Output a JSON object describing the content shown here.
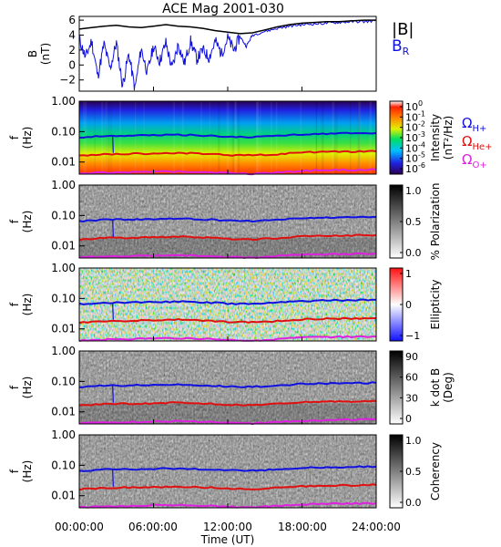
{
  "title": "ACE Mag 2001-030",
  "xlabel": "Time (UT)",
  "x_ticks": [
    "00:00:00",
    "06:00:00",
    "12:00:00",
    "18:00:00",
    "24:00:00"
  ],
  "legend_top": {
    "b_mag": "|B|",
    "b_r": "B",
    "b_r_sub": "R"
  },
  "legend_gyro": [
    {
      "sym": "Ω",
      "sub": "H+",
      "color": "#1010e0"
    },
    {
      "sym": "Ω",
      "sub": "He+",
      "color": "#e01010"
    },
    {
      "sym": "Ω",
      "sub": "O+",
      "color": "#e020e0"
    }
  ],
  "freq_ticks": [
    "1.00",
    "0.10",
    "0.01"
  ],
  "panel_ylabel": "f",
  "panel_yunit": "(Hz)",
  "colors": {
    "b_mag": "#000000",
    "b_r": "#1010e0",
    "h_plus": "#1010e0",
    "he_plus": "#e01010",
    "o_plus": "#e020e0"
  },
  "chart_data": [
    {
      "type": "line",
      "name": "magnetic-field",
      "ylabel": "B",
      "yunit": "(nT)",
      "ylim": [
        -3.5,
        6.5
      ],
      "y_ticks": [
        6,
        4,
        2,
        0,
        -2
      ],
      "xlim": [
        0,
        24
      ],
      "series": [
        {
          "name": "|B|",
          "x": [
            0,
            1,
            2,
            3,
            4,
            5,
            6,
            7,
            8,
            9,
            10,
            11,
            12,
            13,
            14,
            15,
            16,
            17,
            18,
            19,
            20,
            21,
            22,
            23,
            24
          ],
          "y": [
            4.8,
            5.0,
            5.2,
            5.3,
            5.1,
            5.0,
            5.2,
            5.4,
            5.2,
            5.1,
            4.9,
            4.6,
            4.4,
            4.2,
            4.3,
            4.7,
            5.1,
            5.4,
            5.6,
            5.7,
            5.8,
            5.8,
            5.9,
            6.0,
            6.0
          ]
        },
        {
          "name": "B_R",
          "x": [
            0,
            0.5,
            1,
            1.5,
            2,
            2.5,
            3,
            3.5,
            4,
            4.5,
            5,
            5.5,
            6,
            6.5,
            7,
            7.5,
            8,
            8.5,
            9,
            9.5,
            10,
            10.5,
            11,
            11.5,
            12,
            12.5,
            13,
            13.5,
            14,
            15,
            16,
            17,
            18,
            19,
            20,
            21,
            22,
            23,
            24
          ],
          "y": [
            3.5,
            1.0,
            3.2,
            -1.5,
            2.8,
            -0.5,
            3.0,
            -2.8,
            1.5,
            -3.2,
            2.2,
            -1.0,
            2.5,
            0.5,
            3.0,
            -0.5,
            2.8,
            0.2,
            3.2,
            0.8,
            2.0,
            1.0,
            3.2,
            1.5,
            3.6,
            2.0,
            3.8,
            2.5,
            4.0,
            4.5,
            4.9,
            5.2,
            5.4,
            5.5,
            5.6,
            5.7,
            5.8,
            5.8,
            5.9
          ]
        }
      ]
    },
    {
      "type": "heatmap",
      "name": "intensity",
      "ylim": [
        0.004,
        1.0
      ],
      "colorbar_label": "Intensity",
      "colorbar_unit": "(nT²/Hz)",
      "colorbar_ticks": [
        {
          "base": "10",
          "exp": "0"
        },
        {
          "base": "10",
          "exp": "-1"
        },
        {
          "base": "10",
          "exp": "-2"
        },
        {
          "base": "10",
          "exp": "-3"
        },
        {
          "base": "10",
          "exp": "-4"
        },
        {
          "base": "10",
          "exp": "-5"
        },
        {
          "base": "10",
          "exp": "-6"
        }
      ],
      "colormap": "rainbow"
    },
    {
      "type": "heatmap",
      "name": "polarization",
      "ylim": [
        0.004,
        1.0
      ],
      "colorbar_label": "% Polarization",
      "colorbar_ticks": [
        "1.0",
        "0.5",
        "0.0"
      ],
      "colormap": "gray"
    },
    {
      "type": "heatmap",
      "name": "ellipticity",
      "ylim": [
        0.004,
        1.0
      ],
      "colorbar_label": "Ellipticity",
      "colorbar_ticks": [
        "1",
        "0",
        "−1"
      ],
      "colormap": "bwr"
    },
    {
      "type": "heatmap",
      "name": "k-dot-b",
      "ylim": [
        0.004,
        1.0
      ],
      "colorbar_label": "k dot B",
      "colorbar_unit": "(Deg)",
      "colorbar_ticks": [
        "90",
        "60",
        "30",
        "0"
      ],
      "colormap": "gray"
    },
    {
      "type": "heatmap",
      "name": "coherency",
      "ylim": [
        0.004,
        1.0
      ],
      "colorbar_label": "Coherency",
      "colorbar_ticks": [
        "1.0",
        "0.5",
        "0.0"
      ],
      "colormap": "gray"
    }
  ],
  "gyro_lines": {
    "x": [
      0,
      2,
      4,
      6,
      8,
      10,
      12,
      14,
      16,
      18,
      20,
      22,
      24
    ],
    "h_plus": [
      0.065,
      0.072,
      0.074,
      0.076,
      0.079,
      0.075,
      0.068,
      0.066,
      0.073,
      0.082,
      0.086,
      0.088,
      0.09
    ],
    "he_plus": [
      0.016,
      0.018,
      0.0185,
      0.019,
      0.02,
      0.019,
      0.017,
      0.0165,
      0.018,
      0.0205,
      0.0215,
      0.022,
      0.0225
    ],
    "o_plus": [
      0.0041,
      0.0045,
      0.0046,
      0.0048,
      0.0049,
      0.0047,
      0.0043,
      0.0041,
      0.0046,
      0.0051,
      0.0054,
      0.0055,
      0.0056
    ]
  }
}
